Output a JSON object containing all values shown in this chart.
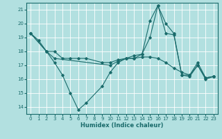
{
  "xlabel": "Humidex (Indice chaleur)",
  "bg_color": "#b2e0e0",
  "grid_color": "#ffffff",
  "line_color": "#1a6b6b",
  "xlim": [
    -0.5,
    23.5
  ],
  "ylim": [
    13.5,
    21.5
  ],
  "yticks": [
    14,
    15,
    16,
    17,
    18,
    19,
    20,
    21
  ],
  "xticks": [
    0,
    1,
    2,
    3,
    4,
    5,
    6,
    7,
    8,
    9,
    10,
    11,
    12,
    13,
    14,
    15,
    16,
    17,
    18,
    19,
    20,
    21,
    22,
    23
  ],
  "series": [
    {
      "x": [
        0,
        1,
        2,
        3,
        4,
        5,
        6,
        7,
        9,
        10,
        11,
        12,
        13,
        14,
        15,
        16,
        17,
        18,
        19,
        20,
        21,
        22,
        23
      ],
      "y": [
        19.3,
        18.8,
        18.0,
        17.2,
        16.3,
        15.0,
        13.8,
        14.3,
        15.5,
        16.5,
        17.2,
        17.5,
        17.5,
        17.8,
        19.0,
        21.3,
        20.0,
        19.3,
        16.3,
        16.2,
        17.0,
        16.0,
        16.2
      ]
    },
    {
      "x": [
        0,
        2,
        3,
        4,
        5,
        6,
        7,
        9,
        10,
        11,
        12,
        13,
        14,
        15,
        16,
        17,
        18,
        19,
        20,
        21,
        22,
        23
      ],
      "y": [
        19.3,
        18.0,
        18.0,
        17.5,
        17.5,
        17.5,
        17.5,
        17.2,
        17.2,
        17.4,
        17.5,
        17.5,
        17.6,
        17.6,
        17.5,
        17.2,
        16.8,
        16.5,
        16.3,
        17.0,
        16.1,
        16.2
      ]
    },
    {
      "x": [
        0,
        2,
        3,
        10,
        11,
        12,
        13,
        14,
        15,
        16,
        17,
        18,
        19,
        20,
        21,
        22,
        23
      ],
      "y": [
        19.3,
        18.0,
        17.5,
        17.0,
        17.3,
        17.5,
        17.7,
        17.8,
        20.2,
        21.3,
        19.3,
        19.2,
        16.3,
        16.3,
        17.2,
        16.1,
        16.2
      ]
    }
  ]
}
